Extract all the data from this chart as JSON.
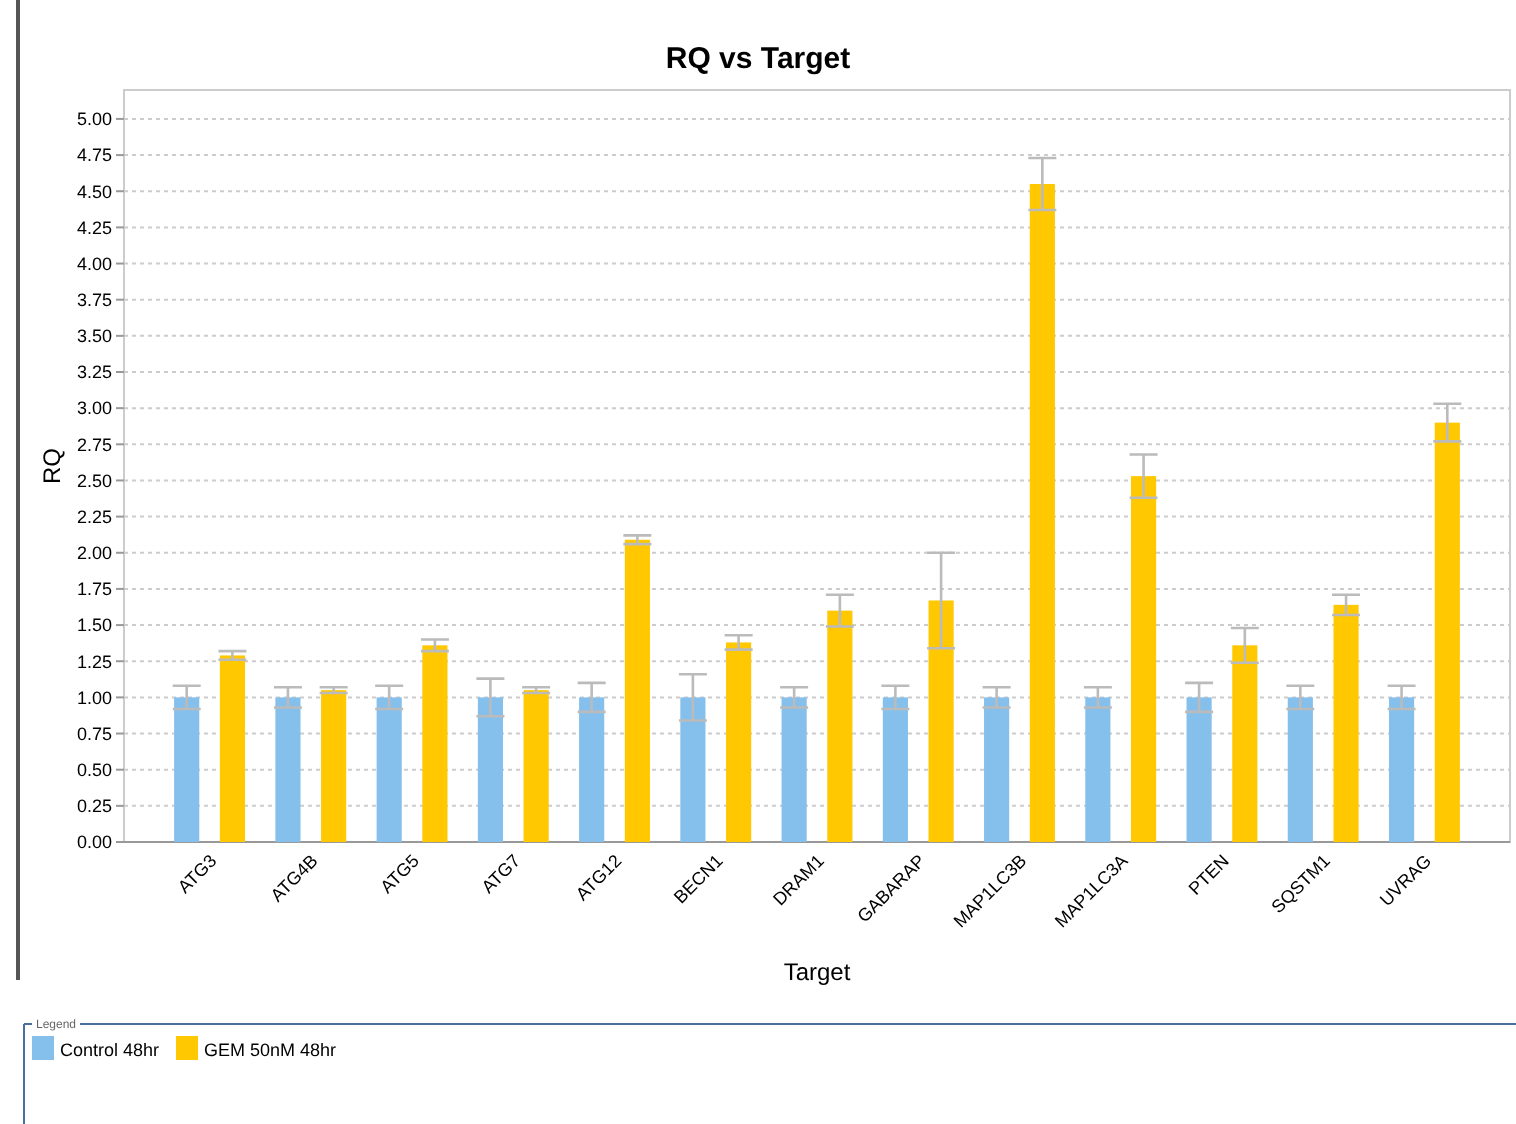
{
  "chart_data": {
    "type": "bar",
    "title": "RQ vs Target",
    "xlabel": "Target",
    "ylabel": "RQ",
    "legend_title": "Legend",
    "categories": [
      "ATG3",
      "ATG4B",
      "ATG5",
      "ATG7",
      "ATG12",
      "BECN1",
      "DRAM1",
      "GABARAP",
      "MAP1LC3B",
      "MAP1LC3A",
      "PTEN",
      "SQSTM1",
      "UVRAG"
    ],
    "series": [
      {
        "name": "Control 48hr",
        "color": "#85bfec",
        "values": [
          1,
          1,
          1,
          1,
          1,
          1,
          1,
          1,
          1,
          1,
          1,
          1,
          1
        ],
        "errors": [
          0.08,
          0.07,
          0.08,
          0.13,
          0.1,
          0.16,
          0.07,
          0.08,
          0.07,
          0.07,
          0.1,
          0.08,
          0.08
        ]
      },
      {
        "name": "GEM 50nM 48hr",
        "color": "#ffc800",
        "values": [
          1.29,
          1.05,
          1.36,
          1.05,
          2.09,
          1.38,
          1.6,
          1.67,
          4.55,
          2.53,
          1.36,
          1.64,
          2.9
        ],
        "errors": [
          0.03,
          0.02,
          0.04,
          0.02,
          0.03,
          0.05,
          0.11,
          0.33,
          0.18,
          0.15,
          0.12,
          0.07,
          0.13
        ]
      }
    ],
    "ylim": [
      0,
      5.2
    ],
    "yticks": [
      {
        "value": 0,
        "label": "0.00"
      },
      {
        "value": 0.25,
        "label": "0.25"
      },
      {
        "value": 0.5,
        "label": "0.50"
      },
      {
        "value": 0.75,
        "label": "0.75"
      },
      {
        "value": 1,
        "label": "1.00"
      },
      {
        "value": 1.25,
        "label": "1.25"
      },
      {
        "value": 1.5,
        "label": "1.50"
      },
      {
        "value": 1.75,
        "label": "1.75"
      },
      {
        "value": 2,
        "label": "2.00"
      },
      {
        "value": 2.25,
        "label": "2.25"
      },
      {
        "value": 2.5,
        "label": "2.50"
      },
      {
        "value": 2.75,
        "label": "2.75"
      },
      {
        "value": 3,
        "label": "3.00"
      },
      {
        "value": 3.25,
        "label": "3.25"
      },
      {
        "value": 3.5,
        "label": "3.50"
      },
      {
        "value": 3.75,
        "label": "3.75"
      },
      {
        "value": 4,
        "label": "4.00"
      },
      {
        "value": 4.25,
        "label": "4.25"
      },
      {
        "value": 4.5,
        "label": "4.50"
      },
      {
        "value": 4.75,
        "label": "4.75"
      },
      {
        "value": 5,
        "label": "5.00"
      }
    ],
    "grid": "y",
    "legend": "bottom"
  }
}
